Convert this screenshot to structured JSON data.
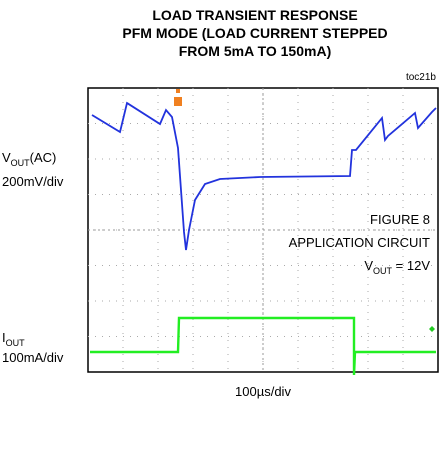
{
  "chart_data": {
    "type": "scope",
    "title": [
      "LOAD TRANSIENT RESPONSE",
      "PFM MODE (LOAD CURRENT STEPPED",
      "FROM 5mA TO 150mA)"
    ],
    "code": "toc21b",
    "ch1_label": {
      "main": "V",
      "sub": "OUT",
      "suffix": "(AC)",
      "scale": "200mV/div"
    },
    "ch2_label": {
      "main": "I",
      "sub": "OUT",
      "scale": "100mA/div"
    },
    "annotation": {
      "line1": "FIGURE 8",
      "line2": "APPLICATION CIRCUIT",
      "line3_main": "V",
      "line3_sub": "OUT",
      "line3_rest": " = 12V"
    },
    "x_label": "100µs/div"
  }
}
